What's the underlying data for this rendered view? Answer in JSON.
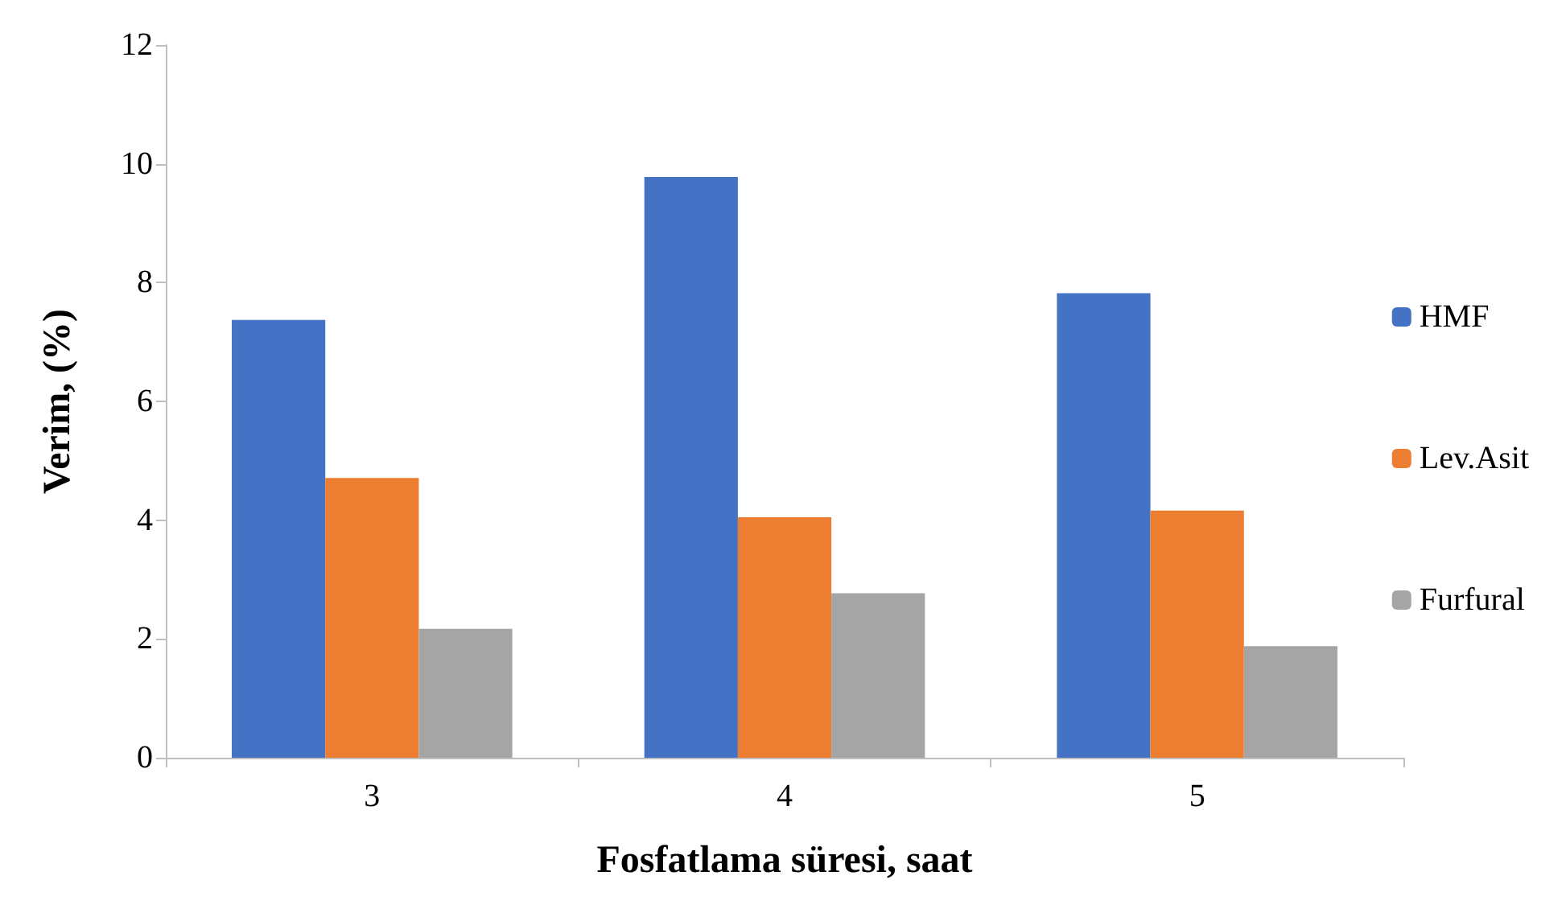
{
  "chart_data": {
    "type": "bar",
    "xlabel": "Fosfatlama süresi, saat",
    "ylabel": "Verim, (%)",
    "categories": [
      "3",
      "4",
      "5"
    ],
    "series": [
      {
        "name": "HMF",
        "color": "#4472c4",
        "values": [
          7.37,
          9.78,
          7.82
        ]
      },
      {
        "name": "Lev.Asit",
        "color": "#ed7d31",
        "values": [
          4.71,
          4.05,
          4.16
        ]
      },
      {
        "name": "Furfural",
        "color": "#a5a5a5",
        "values": [
          2.17,
          2.77,
          1.88
        ]
      }
    ],
    "ylim": [
      0,
      12
    ],
    "yticks": [
      0,
      2,
      4,
      6,
      8,
      10,
      12
    ],
    "grid": false,
    "legend": "right"
  }
}
